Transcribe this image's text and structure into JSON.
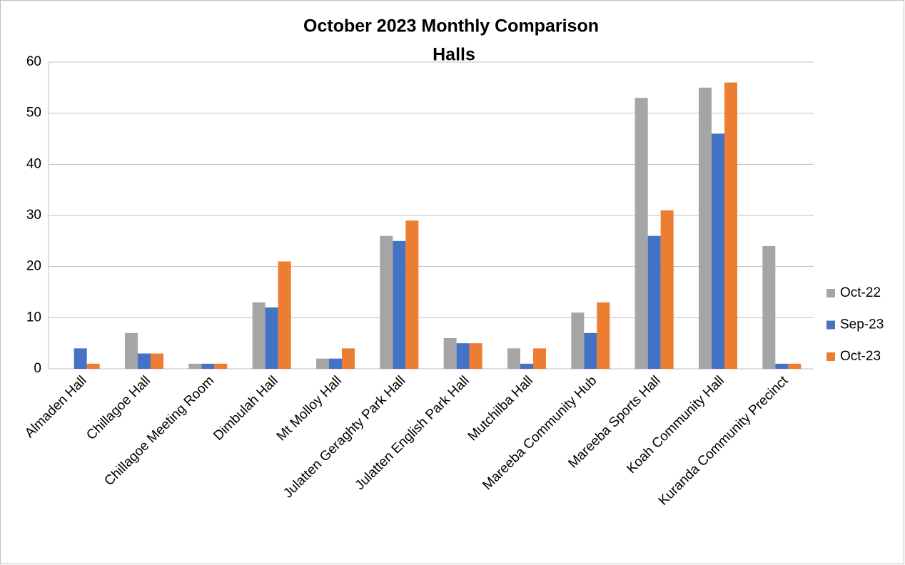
{
  "chart_data": {
    "type": "bar",
    "title": "October 2023 Monthly Comparison",
    "subtitle": "Halls",
    "categories": [
      "Almaden Hall",
      "Chillagoe Hall",
      "Chillagoe Meeting Room",
      "Dimbulah Hall",
      "Mt Molloy Hall",
      "Julatten Geraghty Park Hall",
      "Julatten English Park Hall",
      "Mutchilba Hall",
      "Mareeba Community Hub",
      "Mareeba Sports Hall",
      "Koah Community Hall",
      "Kuranda Community Precinct"
    ],
    "series": [
      {
        "name": "Oct-22",
        "color": "#a5a5a5",
        "values": [
          0,
          7,
          1,
          13,
          2,
          26,
          6,
          4,
          11,
          53,
          55,
          24
        ]
      },
      {
        "name": "Sep-23",
        "color": "#4472c4",
        "values": [
          4,
          3,
          1,
          12,
          2,
          25,
          5,
          1,
          7,
          26,
          46,
          1
        ]
      },
      {
        "name": "Oct-23",
        "color": "#ed7d31",
        "values": [
          1,
          3,
          1,
          21,
          4,
          29,
          5,
          4,
          13,
          31,
          56,
          1
        ]
      }
    ],
    "ylim": [
      0,
      60
    ],
    "yticks": [
      0,
      10,
      20,
      30,
      40,
      50,
      60
    ],
    "grid": true,
    "legend": "right"
  }
}
